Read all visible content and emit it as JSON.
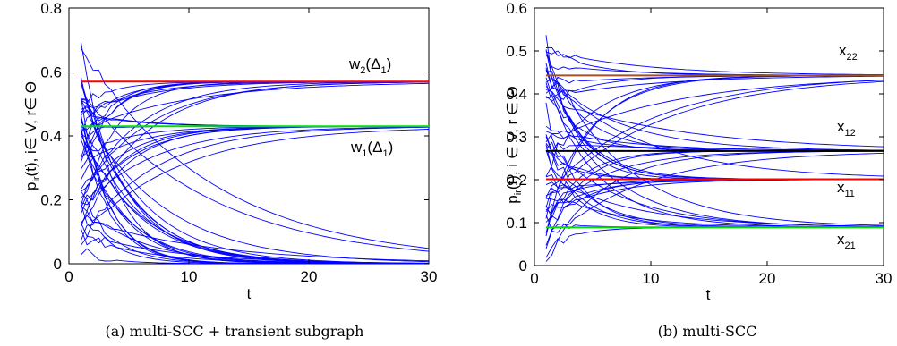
{
  "chart_data": [
    {
      "type": "line",
      "caption": "(a) multi-SCC + transient subgraph",
      "xlabel": "t",
      "ylabel": "p_ir(t),  i∈ V, r∈ Θ",
      "xlim": [
        0,
        30
      ],
      "ylim": [
        0,
        0.8
      ],
      "xticks": [
        "0",
        "10",
        "20",
        "30"
      ],
      "yticks": [
        "0",
        "0.2",
        "0.4",
        "0.6",
        "0.8"
      ],
      "reference_lines": [
        {
          "name": "w_2(Δ_1)",
          "y": 0.57,
          "color": "#ff0000"
        },
        {
          "name": "w_1(Δ_1)",
          "y": 0.43,
          "color": "#00e000"
        }
      ],
      "trajectory_groups": [
        {
          "target": 0.57,
          "count": 12
        },
        {
          "target": 0.43,
          "count": 12
        },
        {
          "target": 0.0,
          "count": 24
        }
      ],
      "trajectory_color": "#0000ff"
    },
    {
      "type": "line",
      "caption": "(b) multi-SCC",
      "xlabel": "t",
      "ylabel": "p_ir(t),  i ∈ V, r ∈ Θ",
      "xlim": [
        0,
        30
      ],
      "ylim": [
        0,
        0.6
      ],
      "xticks": [
        "0",
        "10",
        "20",
        "30"
      ],
      "yticks": [
        "0",
        "0.1",
        "0.2",
        "0.3",
        "0.4",
        "0.5",
        "0.6"
      ],
      "reference_lines": [
        {
          "name": "x_22",
          "y": 0.443,
          "color": "#a0522d"
        },
        {
          "name": "x_12",
          "y": 0.267,
          "color": "#000000"
        },
        {
          "name": "x_11",
          "y": 0.201,
          "color": "#ff0000"
        },
        {
          "name": "x_21",
          "y": 0.089,
          "color": "#00e000"
        }
      ],
      "trajectory_groups": [
        {
          "target": 0.443,
          "count": 12
        },
        {
          "target": 0.267,
          "count": 12
        },
        {
          "target": 0.201,
          "count": 12
        },
        {
          "target": 0.089,
          "count": 12
        }
      ],
      "trajectory_color": "#0000ff"
    }
  ],
  "labels": {
    "a": {
      "yl_main": "p",
      "yl_sub": "ir",
      "yl_rest": "(t),  i∈ V, r∈ Θ",
      "w2_main": "w",
      "w2_sub": "2",
      "w2_rest": "(Δ",
      "w2_sub2": "1",
      "w2_end": ")",
      "w1_main": "w",
      "w1_sub": "1",
      "w1_rest": "(Δ",
      "w1_sub2": "1",
      "w1_end": ")"
    },
    "b": {
      "yl_main": "p",
      "yl_sub": "ir",
      "yl_rest": "(t),  i ∈ V, r ∈ Θ",
      "x22_main": "x",
      "x22_sub": "22",
      "x12_main": "x",
      "x12_sub": "12",
      "x11_main": "x",
      "x11_sub": "11",
      "x21_main": "x",
      "x21_sub": "21"
    }
  }
}
